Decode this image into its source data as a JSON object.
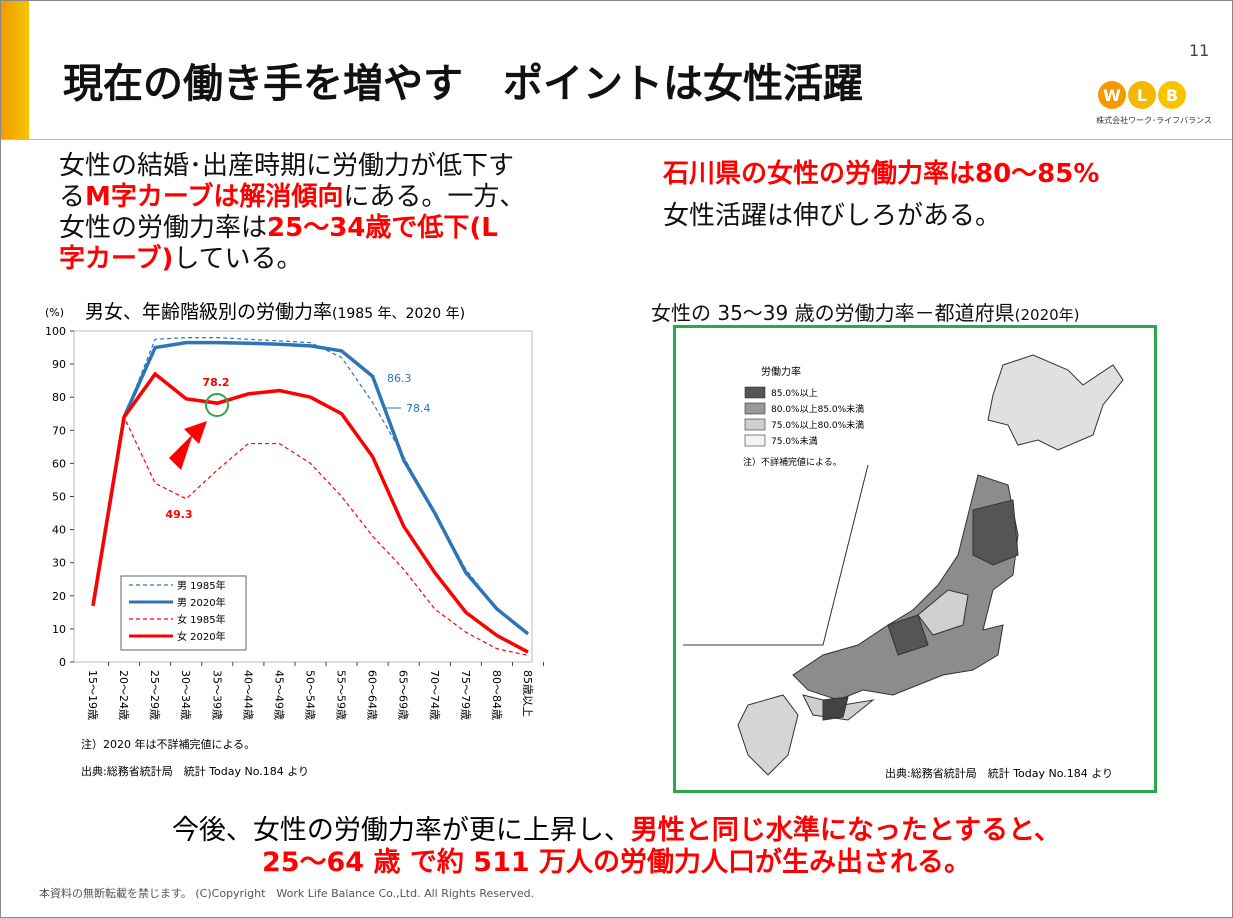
{
  "header": {
    "title": "現在の働き手を増やす　ポイントは女性活躍",
    "page": "11",
    "logo": [
      "W",
      "L",
      "B"
    ],
    "company": "株式会社ワーク･ライフバランス"
  },
  "left_text": [
    [
      {
        "text": "女性の結婚･出産時期に労働力が低下す"
      }
    ],
    [
      {
        "text": "る"
      },
      {
        "text": "M字カーブは解消傾向",
        "emphasis": true
      },
      {
        "text": "にある。一方、"
      }
    ],
    [
      {
        "text": "女性の労働力率は"
      },
      {
        "text": "25～34歳で低下(L",
        "emphasis": true
      }
    ],
    [
      {
        "text": "字カーブ)",
        "emphasis": true
      },
      {
        "text": "している。"
      }
    ]
  ],
  "right_text": [
    [
      {
        "text": "石川県の女性の労働力率は80～85%",
        "emphasis": true
      }
    ],
    [
      {
        "text": "女性活躍は伸びしろがある。"
      }
    ]
  ],
  "chart_data": {
    "type": "line",
    "title": "男女、年齢階級別の労働力率",
    "title_note": "(1985 年、2020 年)",
    "y_unit": "(%)",
    "categories": [
      "15～19歳",
      "20～24歳",
      "25～29歳",
      "30～34歳",
      "35～39歳",
      "40～44歳",
      "45～49歳",
      "50～54歳",
      "55～59歳",
      "60～64歳",
      "65～69歳",
      "70～74歳",
      "75～79歳",
      "80～84歳",
      "85歳以上"
    ],
    "series": [
      {
        "name": "男 1985年",
        "color": "#2e75b6",
        "dash": true,
        "values": [
          17,
          74,
          97.5,
          98,
          98,
          97.5,
          97,
          96.5,
          92,
          78.4,
          62,
          45,
          28,
          16,
          9
        ]
      },
      {
        "name": "男 2020年",
        "color": "#2e75b6",
        "dash": false,
        "values": [
          17,
          74,
          95,
          96.5,
          96.5,
          96.3,
          96,
          95.5,
          94,
          86.3,
          61,
          45,
          27,
          16,
          8.5
        ]
      },
      {
        "name": "女 1985年",
        "color": "#ff0000",
        "dash": true,
        "values": [
          17,
          74,
          54,
          49.3,
          58,
          66,
          66,
          60,
          50,
          38,
          28,
          16,
          9,
          4,
          2
        ]
      },
      {
        "name": "女 2020年",
        "color": "#ff0000",
        "dash": false,
        "values": [
          17,
          74,
          87,
          79.5,
          78.2,
          81,
          82,
          80,
          75,
          62,
          41,
          27,
          15,
          8,
          3
        ]
      }
    ],
    "annotations": [
      "78.2",
      "49.3",
      "86.3",
      "78.4"
    ],
    "ylim": [
      0,
      100
    ],
    "yticks": [
      0,
      10,
      20,
      30,
      40,
      50,
      60,
      70,
      80,
      90,
      100
    ],
    "grid": false,
    "note": "注）2020 年は不詳補完値による。",
    "source": "出典:総務省統計局　統計 Today No.184 より"
  },
  "map": {
    "title": "女性の 35～39 歳の労働力率－都道府県",
    "title_note": "(2020年)",
    "legend_title": "労働力率",
    "legend": [
      {
        "label": "85.0%以上",
        "color": "#555555"
      },
      {
        "label": "80.0%以上85.0%未満",
        "color": "#999999"
      },
      {
        "label": "75.0%以上80.0%未満",
        "color": "#cfcfcf"
      },
      {
        "label": "75.0%未満",
        "color": "#f4f4f4"
      }
    ],
    "note": "注）不詳補完値による。",
    "source": "出典:総務省統計局　統計 Today No.184 より"
  },
  "footer": {
    "message": [
      [
        {
          "text": "今後、女性の労働力率が更に上昇し、"
        },
        {
          "text": "男性と同じ水準になったとすると、",
          "emphasis": true
        }
      ],
      [
        {
          "text": "25～64 歳 で約 511 万人の労働力人口が生み出される。",
          "emphasis": true
        }
      ]
    ],
    "copyright": "本資料の無断転載を禁じます。 (C)Copyright　Work Life Balance Co.,Ltd. All Rights Reserved."
  }
}
